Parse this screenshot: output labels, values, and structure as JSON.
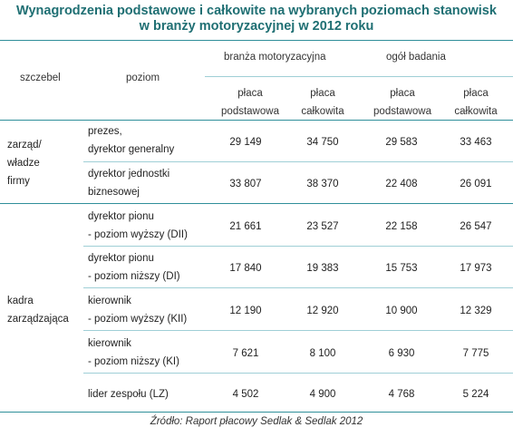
{
  "title_line1": "Wynagrodzenia podstawowe i całkowite na wybranych poziomach stanowisk",
  "title_line2": "w branży motoryzacyjnej w 2012 roku",
  "headers": {
    "szczebel": "szczebel",
    "poziom": "poziom",
    "group1": "branża motoryzacyjna",
    "group2": "ogół badania",
    "placa": "płaca",
    "podstawowa": "podstawowa",
    "calkowita": "całkowita"
  },
  "groups": {
    "zarzad": [
      "zarząd/",
      "władze",
      "firmy"
    ],
    "kadra": [
      "kadra",
      "zarządzająca"
    ]
  },
  "rows": [
    {
      "label": [
        "prezes,",
        "dyrektor generalny"
      ],
      "values": [
        "29 149",
        "34 750",
        "29 583",
        "33 463"
      ]
    },
    {
      "label": [
        "dyrektor jednostki",
        "biznesowej"
      ],
      "values": [
        "33 807",
        "38 370",
        "22 408",
        "26 091"
      ]
    },
    {
      "label": [
        "dyrektor pionu",
        "- poziom wyższy  (DII)"
      ],
      "values": [
        "21 661",
        "23 527",
        "22 158",
        "26 547"
      ]
    },
    {
      "label": [
        "dyrektor pionu",
        "- poziom niższy  (DI)"
      ],
      "values": [
        "17 840",
        "19 383",
        "15 753",
        "17 973"
      ]
    },
    {
      "label": [
        "kierownik",
        "- poziom wyższy  (KII)"
      ],
      "values": [
        "12 190",
        "12 920",
        "10 900",
        "12 329"
      ]
    },
    {
      "label": [
        "kierownik",
        "- poziom niższy  (KI)"
      ],
      "values": [
        "7 621",
        "8 100",
        "6 930",
        "7 775"
      ]
    },
    {
      "label": [
        "lider zespołu (LZ)"
      ],
      "values": [
        "4 502",
        "4 900",
        "4 768",
        "5 224"
      ]
    }
  ],
  "source": "Źródło: Raport płacowy Sedlak & Sedlak 2012"
}
